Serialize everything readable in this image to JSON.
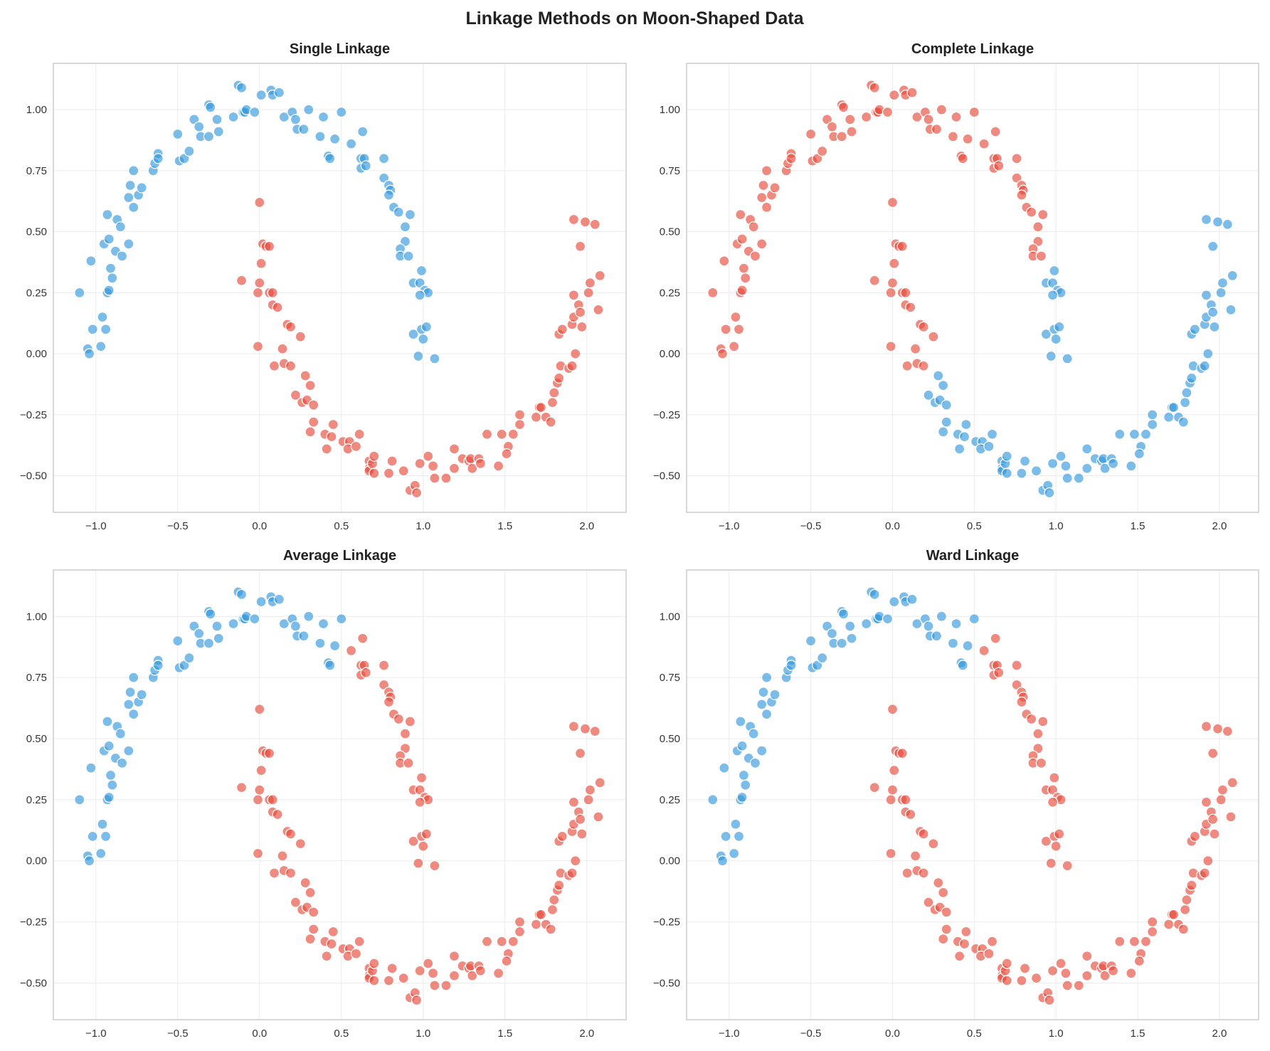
{
  "chart_data": {
    "type": "scatter",
    "title": "Linkage Methods on Moon-Shaped Data",
    "xlim": [
      -1.26,
      2.24
    ],
    "ylim": [
      -0.65,
      1.19
    ],
    "x_ticks": [
      -1.0,
      -0.5,
      0.0,
      0.5,
      1.0,
      1.5,
      2.0
    ],
    "x_tick_labels": [
      "−1.0",
      "−0.5",
      "0.0",
      "0.5",
      "1.0",
      "1.5",
      "2.0"
    ],
    "y_ticks": [
      -0.5,
      -0.25,
      0.0,
      0.25,
      0.5,
      0.75,
      1.0
    ],
    "y_tick_labels": [
      "−0.50",
      "−0.25",
      "0.00",
      "0.25",
      "0.50",
      "0.75",
      "1.00"
    ],
    "grid": true,
    "cluster_colors": [
      "#3498db",
      "#e74c3c"
    ],
    "point_fields": [
      "x",
      "y",
      "single",
      "complete",
      "average",
      "ward"
    ],
    "subplots": [
      {
        "title": "Single Linkage",
        "label_field": "single"
      },
      {
        "title": "Complete Linkage",
        "label_field": "complete"
      },
      {
        "title": "Average Linkage",
        "label_field": "average"
      },
      {
        "title": "Ward Linkage",
        "label_field": "ward"
      }
    ],
    "points": [
      [
        -1.1,
        0.25,
        0,
        1,
        0,
        0
      ],
      [
        -1.03,
        0.38,
        0,
        1,
        0,
        0
      ],
      [
        -1.02,
        0.1,
        0,
        1,
        0,
        0
      ],
      [
        -1.05,
        0.02,
        0,
        1,
        0,
        0
      ],
      [
        -1.04,
        0.0,
        0,
        1,
        0,
        0
      ],
      [
        -0.97,
        0.03,
        0,
        1,
        0,
        0
      ],
      [
        -0.96,
        0.15,
        0,
        1,
        0,
        0
      ],
      [
        -0.94,
        0.1,
        0,
        1,
        0,
        0
      ],
      [
        -0.93,
        0.57,
        0,
        1,
        0,
        0
      ],
      [
        -0.95,
        0.45,
        0,
        1,
        0,
        0
      ],
      [
        -0.92,
        0.47,
        0,
        1,
        0,
        0
      ],
      [
        -0.93,
        0.25,
        0,
        1,
        0,
        0
      ],
      [
        -0.92,
        0.26,
        0,
        1,
        0,
        0
      ],
      [
        -0.91,
        0.35,
        0,
        1,
        0,
        0
      ],
      [
        -0.9,
        0.31,
        0,
        1,
        0,
        0
      ],
      [
        -0.88,
        0.42,
        0,
        1,
        0,
        0
      ],
      [
        -0.87,
        0.55,
        0,
        1,
        0,
        0
      ],
      [
        -0.85,
        0.52,
        0,
        1,
        0,
        0
      ],
      [
        -0.84,
        0.4,
        0,
        1,
        0,
        0
      ],
      [
        -0.8,
        0.45,
        0,
        1,
        0,
        0
      ],
      [
        -0.8,
        0.64,
        0,
        1,
        0,
        0
      ],
      [
        -0.79,
        0.69,
        0,
        1,
        0,
        0
      ],
      [
        -0.77,
        0.75,
        0,
        1,
        0,
        0
      ],
      [
        -0.77,
        0.6,
        0,
        1,
        0,
        0
      ],
      [
        -0.74,
        0.65,
        0,
        1,
        0,
        0
      ],
      [
        -0.72,
        0.68,
        0,
        1,
        0,
        0
      ],
      [
        -0.65,
        0.75,
        0,
        1,
        0,
        0
      ],
      [
        -0.64,
        0.78,
        0,
        1,
        0,
        0
      ],
      [
        -0.62,
        0.82,
        0,
        1,
        0,
        0
      ],
      [
        -0.62,
        0.8,
        0,
        1,
        0,
        0
      ],
      [
        -0.5,
        0.9,
        0,
        1,
        0,
        0
      ],
      [
        -0.49,
        0.79,
        0,
        1,
        0,
        0
      ],
      [
        -0.46,
        0.8,
        0,
        1,
        0,
        0
      ],
      [
        -0.43,
        0.83,
        0,
        1,
        0,
        0
      ],
      [
        -0.4,
        0.96,
        0,
        1,
        0,
        0
      ],
      [
        -0.37,
        0.93,
        0,
        1,
        0,
        0
      ],
      [
        -0.36,
        0.89,
        0,
        1,
        0,
        0
      ],
      [
        -0.31,
        1.02,
        0,
        1,
        0,
        0
      ],
      [
        -0.3,
        1.01,
        0,
        1,
        0,
        0
      ],
      [
        -0.31,
        0.89,
        0,
        1,
        0,
        0
      ],
      [
        -0.26,
        0.96,
        0,
        1,
        0,
        0
      ],
      [
        -0.25,
        0.91,
        0,
        1,
        0,
        0
      ],
      [
        -0.16,
        0.97,
        0,
        1,
        0,
        0
      ],
      [
        -0.13,
        1.1,
        0,
        1,
        0,
        0
      ],
      [
        -0.11,
        1.09,
        0,
        1,
        0,
        0
      ],
      [
        -0.1,
        0.99,
        0,
        1,
        0,
        0
      ],
      [
        -0.09,
        0.99,
        0,
        1,
        0,
        0
      ],
      [
        -0.08,
        1.0,
        0,
        1,
        0,
        0
      ],
      [
        -0.03,
        0.99,
        0,
        1,
        0,
        0
      ],
      [
        0.01,
        1.06,
        0,
        1,
        0,
        0
      ],
      [
        0.07,
        1.08,
        0,
        1,
        0,
        0
      ],
      [
        0.08,
        1.06,
        0,
        1,
        0,
        0
      ],
      [
        0.12,
        1.07,
        0,
        1,
        0,
        0
      ],
      [
        0.15,
        0.97,
        0,
        1,
        0,
        0
      ],
      [
        0.2,
        0.99,
        0,
        1,
        0,
        0
      ],
      [
        0.22,
        0.96,
        0,
        1,
        0,
        0
      ],
      [
        0.23,
        0.92,
        0,
        1,
        0,
        0
      ],
      [
        0.27,
        0.92,
        0,
        1,
        0,
        0
      ],
      [
        0.3,
        1.0,
        0,
        1,
        0,
        0
      ],
      [
        0.37,
        0.89,
        0,
        1,
        0,
        0
      ],
      [
        0.39,
        0.97,
        0,
        1,
        0,
        0
      ],
      [
        0.42,
        0.81,
        0,
        1,
        0,
        0
      ],
      [
        0.43,
        0.8,
        0,
        1,
        0,
        0
      ],
      [
        0.46,
        0.88,
        0,
        1,
        0,
        0
      ],
      [
        0.5,
        0.99,
        0,
        1,
        0,
        0
      ],
      [
        0.56,
        0.86,
        0,
        1,
        1,
        1
      ],
      [
        0.63,
        0.91,
        0,
        1,
        1,
        1
      ],
      [
        0.62,
        0.8,
        0,
        1,
        1,
        1
      ],
      [
        0.64,
        0.8,
        0,
        1,
        1,
        1
      ],
      [
        0.62,
        0.76,
        0,
        1,
        1,
        1
      ],
      [
        0.65,
        0.77,
        0,
        1,
        1,
        1
      ],
      [
        0.76,
        0.72,
        0,
        1,
        1,
        1
      ],
      [
        0.76,
        0.8,
        0,
        1,
        1,
        1
      ],
      [
        0.79,
        0.69,
        0,
        1,
        1,
        1
      ],
      [
        0.8,
        0.67,
        0,
        1,
        1,
        1
      ],
      [
        0.79,
        0.65,
        0,
        1,
        1,
        1
      ],
      [
        0.82,
        0.6,
        0,
        1,
        1,
        1
      ],
      [
        0.85,
        0.58,
        0,
        1,
        1,
        1
      ],
      [
        0.89,
        0.52,
        0,
        1,
        1,
        1
      ],
      [
        0.92,
        0.57,
        0,
        1,
        1,
        1
      ],
      [
        0.89,
        0.46,
        0,
        1,
        1,
        1
      ],
      [
        0.86,
        0.43,
        0,
        1,
        1,
        1
      ],
      [
        0.86,
        0.4,
        0,
        1,
        1,
        1
      ],
      [
        0.91,
        0.4,
        0,
        1,
        1,
        1
      ],
      [
        0.94,
        0.29,
        0,
        0,
        1,
        1
      ],
      [
        0.99,
        0.34,
        0,
        0,
        1,
        1
      ],
      [
        0.98,
        0.29,
        0,
        0,
        1,
        1
      ],
      [
        1.01,
        0.26,
        0,
        0,
        1,
        1
      ],
      [
        1.03,
        0.25,
        0,
        0,
        1,
        1
      ],
      [
        0.98,
        0.24,
        0,
        0,
        1,
        1
      ],
      [
        0.94,
        0.08,
        0,
        0,
        1,
        1
      ],
      [
        0.99,
        0.1,
        0,
        0,
        1,
        1
      ],
      [
        1.0,
        0.06,
        0,
        0,
        1,
        1
      ],
      [
        1.02,
        0.11,
        0,
        0,
        1,
        1
      ],
      [
        0.97,
        -0.01,
        0,
        0,
        1,
        1
      ],
      [
        1.07,
        -0.02,
        0,
        0,
        1,
        1
      ],
      [
        0.0,
        0.62,
        1,
        1,
        1,
        1
      ],
      [
        0.02,
        0.45,
        1,
        1,
        1,
        1
      ],
      [
        0.04,
        0.44,
        1,
        1,
        1,
        1
      ],
      [
        0.06,
        0.44,
        1,
        1,
        1,
        1
      ],
      [
        0.01,
        0.37,
        1,
        1,
        1,
        1
      ],
      [
        0.0,
        0.29,
        1,
        1,
        1,
        1
      ],
      [
        -0.11,
        0.3,
        1,
        1,
        1,
        1
      ],
      [
        -0.01,
        0.25,
        1,
        1,
        1,
        1
      ],
      [
        0.06,
        0.25,
        1,
        1,
        1,
        1
      ],
      [
        0.08,
        0.25,
        1,
        1,
        1,
        1
      ],
      [
        0.08,
        0.2,
        1,
        1,
        1,
        1
      ],
      [
        0.11,
        0.19,
        1,
        1,
        1,
        1
      ],
      [
        0.17,
        0.12,
        1,
        1,
        1,
        1
      ],
      [
        0.19,
        0.11,
        1,
        1,
        1,
        1
      ],
      [
        0.25,
        0.07,
        1,
        1,
        1,
        1
      ],
      [
        -0.01,
        0.03,
        1,
        1,
        1,
        1
      ],
      [
        0.14,
        0.02,
        1,
        1,
        1,
        1
      ],
      [
        0.09,
        -0.05,
        1,
        1,
        1,
        1
      ],
      [
        0.15,
        -0.04,
        1,
        1,
        1,
        1
      ],
      [
        0.19,
        -0.05,
        1,
        1,
        1,
        1
      ],
      [
        0.28,
        -0.09,
        1,
        0,
        1,
        1
      ],
      [
        0.31,
        -0.13,
        1,
        0,
        1,
        1
      ],
      [
        0.22,
        -0.17,
        1,
        0,
        1,
        1
      ],
      [
        0.26,
        -0.2,
        1,
        0,
        1,
        1
      ],
      [
        0.29,
        -0.19,
        1,
        0,
        1,
        1
      ],
      [
        0.33,
        -0.21,
        1,
        0,
        1,
        1
      ],
      [
        0.33,
        -0.28,
        1,
        0,
        1,
        1
      ],
      [
        0.31,
        -0.32,
        1,
        0,
        1,
        1
      ],
      [
        0.4,
        -0.33,
        1,
        0,
        1,
        1
      ],
      [
        0.45,
        -0.29,
        1,
        0,
        1,
        1
      ],
      [
        0.44,
        -0.34,
        1,
        0,
        1,
        1
      ],
      [
        0.41,
        -0.39,
        1,
        0,
        1,
        1
      ],
      [
        0.51,
        -0.36,
        1,
        0,
        1,
        1
      ],
      [
        0.55,
        -0.36,
        1,
        0,
        1,
        1
      ],
      [
        0.54,
        -0.39,
        1,
        0,
        1,
        1
      ],
      [
        0.59,
        -0.38,
        1,
        0,
        1,
        1
      ],
      [
        0.61,
        -0.33,
        1,
        0,
        1,
        1
      ],
      [
        0.67,
        -0.44,
        1,
        0,
        1,
        1
      ],
      [
        0.67,
        -0.47,
        1,
        0,
        1,
        1
      ],
      [
        0.67,
        -0.48,
        1,
        0,
        1,
        1
      ],
      [
        0.7,
        -0.49,
        1,
        0,
        1,
        1
      ],
      [
        0.69,
        -0.45,
        1,
        0,
        1,
        1
      ],
      [
        0.7,
        -0.42,
        1,
        0,
        1,
        1
      ],
      [
        0.79,
        -0.49,
        1,
        0,
        1,
        1
      ],
      [
        0.81,
        -0.44,
        1,
        0,
        1,
        1
      ],
      [
        0.88,
        -0.48,
        1,
        0,
        1,
        1
      ],
      [
        0.92,
        -0.56,
        1,
        0,
        1,
        1
      ],
      [
        0.95,
        -0.54,
        1,
        0,
        1,
        1
      ],
      [
        0.96,
        -0.57,
        1,
        0,
        1,
        1
      ],
      [
        0.98,
        -0.45,
        1,
        0,
        1,
        1
      ],
      [
        1.03,
        -0.42,
        1,
        0,
        1,
        1
      ],
      [
        1.06,
        -0.46,
        1,
        0,
        1,
        1
      ],
      [
        1.07,
        -0.51,
        1,
        0,
        1,
        1
      ],
      [
        1.14,
        -0.51,
        1,
        0,
        1,
        1
      ],
      [
        1.19,
        -0.39,
        1,
        0,
        1,
        1
      ],
      [
        1.19,
        -0.47,
        1,
        0,
        1,
        1
      ],
      [
        1.24,
        -0.43,
        1,
        0,
        1,
        1
      ],
      [
        1.28,
        -0.44,
        1,
        0,
        1,
        1
      ],
      [
        1.29,
        -0.43,
        1,
        0,
        1,
        1
      ],
      [
        1.3,
        -0.47,
        1,
        0,
        1,
        1
      ],
      [
        1.34,
        -0.43,
        1,
        0,
        1,
        1
      ],
      [
        1.35,
        -0.45,
        1,
        0,
        1,
        1
      ],
      [
        1.39,
        -0.33,
        1,
        0,
        1,
        1
      ],
      [
        1.46,
        -0.46,
        1,
        0,
        1,
        1
      ],
      [
        1.48,
        -0.33,
        1,
        0,
        1,
        1
      ],
      [
        1.52,
        -0.38,
        1,
        0,
        1,
        1
      ],
      [
        1.51,
        -0.41,
        1,
        0,
        1,
        1
      ],
      [
        1.55,
        -0.33,
        1,
        0,
        1,
        1
      ],
      [
        1.59,
        -0.25,
        1,
        0,
        1,
        1
      ],
      [
        1.59,
        -0.29,
        1,
        0,
        1,
        1
      ],
      [
        1.69,
        -0.26,
        1,
        0,
        1,
        1
      ],
      [
        1.71,
        -0.22,
        1,
        0,
        1,
        1
      ],
      [
        1.72,
        -0.22,
        1,
        0,
        1,
        1
      ],
      [
        1.75,
        -0.26,
        1,
        0,
        1,
        1
      ],
      [
        1.79,
        -0.2,
        1,
        0,
        1,
        1
      ],
      [
        1.78,
        -0.28,
        1,
        0,
        1,
        1
      ],
      [
        1.8,
        -0.16,
        1,
        0,
        1,
        1
      ],
      [
        1.82,
        -0.12,
        1,
        0,
        1,
        1
      ],
      [
        1.83,
        -0.1,
        1,
        0,
        1,
        1
      ],
      [
        1.84,
        -0.05,
        1,
        0,
        1,
        1
      ],
      [
        1.83,
        0.08,
        1,
        0,
        1,
        1
      ],
      [
        1.85,
        0.1,
        1,
        0,
        1,
        1
      ],
      [
        1.89,
        -0.06,
        1,
        0,
        1,
        1
      ],
      [
        1.91,
        -0.05,
        1,
        0,
        1,
        1
      ],
      [
        1.93,
        0.0,
        1,
        0,
        1,
        1
      ],
      [
        1.91,
        0.12,
        1,
        0,
        1,
        1
      ],
      [
        1.92,
        0.15,
        1,
        0,
        1,
        1
      ],
      [
        1.92,
        0.24,
        1,
        0,
        1,
        1
      ],
      [
        1.95,
        0.2,
        1,
        0,
        1,
        1
      ],
      [
        1.96,
        0.17,
        1,
        0,
        1,
        1
      ],
      [
        1.97,
        0.11,
        1,
        0,
        1,
        1
      ],
      [
        1.92,
        0.55,
        1,
        0,
        1,
        1
      ],
      [
        1.99,
        0.54,
        1,
        0,
        1,
        1
      ],
      [
        2.05,
        0.53,
        1,
        0,
        1,
        1
      ],
      [
        1.96,
        0.44,
        1,
        0,
        1,
        1
      ],
      [
        2.01,
        0.25,
        1,
        0,
        1,
        1
      ],
      [
        2.02,
        0.29,
        1,
        0,
        1,
        1
      ],
      [
        2.08,
        0.32,
        1,
        0,
        1,
        1
      ],
      [
        2.07,
        0.18,
        1,
        0,
        1,
        1
      ]
    ]
  }
}
